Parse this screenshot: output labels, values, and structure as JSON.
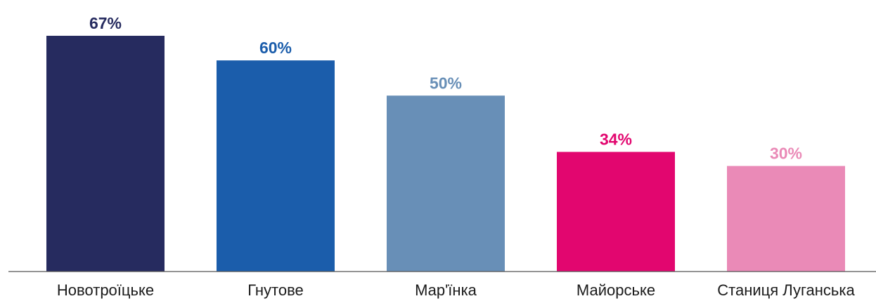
{
  "chart_data": {
    "type": "bar",
    "title": "",
    "xlabel": "",
    "ylabel": "",
    "ylim": [
      0,
      67
    ],
    "grid": false,
    "categories": [
      "Новотроїцьке",
      "Гнутове",
      "Мар'їнка",
      "Майорське",
      "Станиця Луганська"
    ],
    "values": [
      67,
      60,
      50,
      34,
      30
    ],
    "value_labels": [
      "67%",
      "60%",
      "50%",
      "34%",
      "30%"
    ],
    "colors": [
      "#262b5f",
      "#1b5dab",
      "#688fb7",
      "#e2066f",
      "#ea8ab7"
    ]
  }
}
